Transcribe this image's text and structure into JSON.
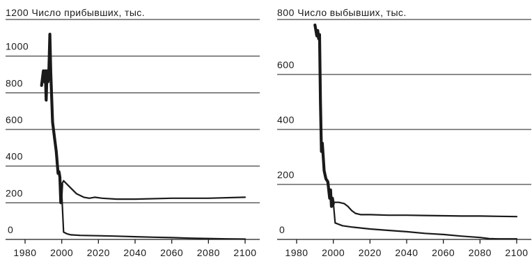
{
  "chart_data": [
    {
      "type": "line",
      "title": "Число прибывших, тыс.",
      "ylim": [
        0,
        1200
      ],
      "yticks": [
        0,
        200,
        400,
        600,
        800,
        1000,
        1200
      ],
      "xlim": [
        1980,
        2100
      ],
      "xticks": [
        1980,
        2000,
        2020,
        2040,
        2060,
        2080,
        2100
      ],
      "series": [
        {
          "style": "thick",
          "x": [
            1989,
            1990,
            1990.5,
            1991,
            1991.5,
            1992,
            1992.5,
            1993,
            1993.5,
            1994,
            1995,
            1996,
            1997,
            1998,
            1998.5,
            1999,
            1999.5,
            2000
          ],
          "y": [
            840,
            920,
            860,
            920,
            760,
            920,
            860,
            920,
            1120,
            910,
            640,
            560,
            480,
            360,
            370,
            340,
            200,
            300
          ]
        },
        {
          "style": "thin",
          "name": "",
          "x": [
            2000,
            2001,
            2002,
            2005,
            2008,
            2012,
            2015,
            2018,
            2022,
            2030,
            2040,
            2060,
            2080,
            2100
          ],
          "y": [
            300,
            320,
            310,
            280,
            250,
            230,
            225,
            230,
            225,
            220,
            220,
            225,
            225,
            230
          ]
        },
        {
          "style": "thin",
          "name": "",
          "x": [
            2000,
            2001,
            2003,
            2005,
            2010,
            2020,
            2030,
            2040,
            2050,
            2060,
            2070,
            2080,
            2090,
            2100
          ],
          "y": [
            250,
            40,
            30,
            25,
            22,
            20,
            18,
            15,
            12,
            10,
            7,
            5,
            3,
            2
          ]
        }
      ]
    },
    {
      "type": "line",
      "title": "Число выбывших, тыс.",
      "ylim": [
        0,
        800
      ],
      "yticks": [
        0,
        200,
        400,
        600,
        800
      ],
      "xlim": [
        1980,
        2100
      ],
      "xticks": [
        1980,
        2000,
        2020,
        2040,
        2060,
        2080,
        2100
      ],
      "series": [
        {
          "style": "thick",
          "x": [
            1990,
            1991,
            1991.5,
            1992,
            1992.5,
            1993,
            1993.5,
            1994,
            1995,
            1996,
            1997,
            1998,
            1998.5,
            1999,
            1999.5,
            2000
          ],
          "y": [
            780,
            740,
            760,
            730,
            745,
            500,
            320,
            350,
            250,
            220,
            210,
            150,
            180,
            120,
            150,
            130
          ]
        },
        {
          "style": "thin",
          "name": "",
          "x": [
            2000,
            2003,
            2006,
            2008,
            2010,
            2012,
            2015,
            2020,
            2030,
            2040,
            2050,
            2060,
            2070,
            2080,
            2090,
            2100
          ],
          "y": [
            135,
            135,
            130,
            120,
            105,
            95,
            90,
            90,
            88,
            88,
            87,
            86,
            85,
            85,
            84,
            83
          ]
        },
        {
          "style": "thin",
          "name": "",
          "x": [
            2000,
            2001,
            2005,
            2010,
            2020,
            2030,
            2040,
            2050,
            2060,
            2070,
            2080,
            2085,
            2090,
            2100
          ],
          "y": [
            135,
            60,
            50,
            45,
            38,
            33,
            28,
            22,
            18,
            12,
            7,
            3,
            2,
            2
          ]
        }
      ]
    }
  ]
}
